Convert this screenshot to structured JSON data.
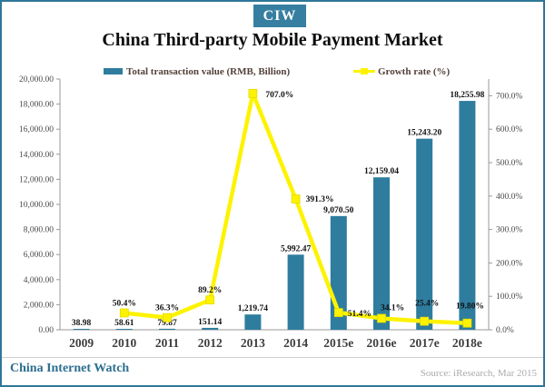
{
  "badge": "CIW",
  "title": "China Third-party Mobile Payment Market",
  "legend": [
    {
      "label": "Total transaction value (RMB, Billion)",
      "type": "bar",
      "color": "#2E7D9E"
    },
    {
      "label": "Growth rate (%)",
      "type": "line",
      "color": "#FDF300"
    }
  ],
  "footer": {
    "brand": "China Internet Watch",
    "source": "Source: iResearch, Mar 2015"
  },
  "colors": {
    "bar": "#2E7D9E",
    "line": "#FDF300",
    "line_marker_edge": "#E3D800",
    "axis": "#9A9A9A",
    "tick_text": "#4A4A4A",
    "x_label_text": "#3E3E3E",
    "data_label_text": "#111111",
    "badge_bg": "#377FA1",
    "brand_text": "#2C6E8F"
  },
  "chart_data": {
    "type": "bar",
    "subtype": "combo bar + line, dual axis",
    "title": "China Third-party Mobile Payment Market",
    "categories": [
      "2009",
      "2010",
      "2011",
      "2012",
      "2013",
      "2014",
      "2015e",
      "2016e",
      "2017e",
      "2018e"
    ],
    "series": [
      {
        "name": "Total transaction value (RMB, Billion)",
        "type": "bar",
        "axis": "left",
        "values": [
          38.98,
          58.61,
          79.87,
          151.14,
          1219.74,
          5992.47,
          9070.5,
          12159.04,
          15243.2,
          18255.98
        ],
        "labels": [
          "38.98",
          "58.61",
          "79.87",
          "151.14",
          "1,219.74",
          "5,992.47",
          "9,070.50",
          "12,159.04",
          "15,243.20",
          "18,255.98"
        ]
      },
      {
        "name": "Growth rate (%)",
        "type": "line",
        "axis": "right",
        "values": [
          null,
          50.4,
          36.3,
          89.2,
          707.0,
          391.3,
          51.4,
          34.1,
          25.4,
          19.8
        ],
        "labels": [
          "",
          "50.4%",
          "36.3%",
          "89.2%",
          "707.0%",
          "391.3%",
          "51.4%",
          "34.1%",
          "25.4%",
          "19.80%"
        ]
      }
    ],
    "left_axis": {
      "min": 0,
      "max": 20000,
      "step": 2000,
      "tick_labels": [
        "0.00",
        "2,000.00",
        "4,000.00",
        "6,000.00",
        "8,000.00",
        "10,000.00",
        "12,000.00",
        "14,000.00",
        "16,000.00",
        "18,000.00",
        "20,000.00"
      ]
    },
    "right_axis": {
      "min": 0,
      "max": 750,
      "step": 100,
      "tick_labels": [
        "0.0%",
        "100.0%",
        "200.0%",
        "300.0%",
        "400.0%",
        "500.0%",
        "600.0%",
        "700.0%"
      ]
    },
    "grid": false,
    "legend_position": "top"
  }
}
